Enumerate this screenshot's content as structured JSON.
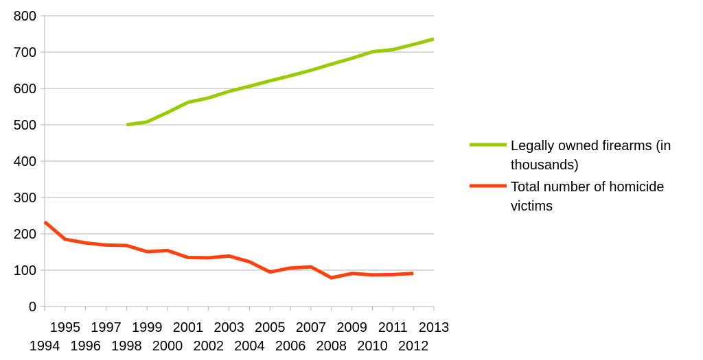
{
  "chart_data": {
    "type": "line",
    "x": [
      1994,
      1995,
      1996,
      1997,
      1998,
      1999,
      2000,
      2001,
      2002,
      2003,
      2004,
      2005,
      2006,
      2007,
      2008,
      2009,
      2010,
      2011,
      2012,
      2013
    ],
    "x_tick_labels": [
      "1994",
      "1995",
      "1996",
      "1997",
      "1998",
      "1999",
      "2000",
      "2001",
      "2002",
      "2003",
      "2004",
      "2005",
      "2006",
      "2007",
      "2008",
      "2009",
      "2010",
      "2011",
      "2012",
      "2013"
    ],
    "y_tick_labels": [
      "0",
      "100",
      "200",
      "300",
      "400",
      "500",
      "600",
      "700",
      "800"
    ],
    "ylim": [
      0,
      800
    ],
    "y_ticks": [
      0,
      100,
      200,
      300,
      400,
      500,
      600,
      700,
      800
    ],
    "grid": true,
    "legend_position": "right",
    "series": [
      {
        "name": "Legally owned firearms (in thousands)",
        "legend_lines": [
          "Legally owned firearms (in",
          "thousands)"
        ],
        "color": "#99cc00",
        "values": [
          null,
          null,
          null,
          null,
          500,
          508,
          534,
          562,
          574,
          592,
          606,
          621,
          635,
          650,
          667,
          683,
          701,
          707,
          721,
          736
        ]
      },
      {
        "name": "Total number of homicide victims",
        "legend_lines": [
          "Total number of homicide",
          "victims"
        ],
        "color": "#ff420e",
        "values": [
          233,
          185,
          175,
          169,
          168,
          151,
          154,
          135,
          134,
          139,
          123,
          95,
          106,
          109,
          79,
          91,
          87,
          88,
          91,
          null
        ]
      }
    ]
  }
}
